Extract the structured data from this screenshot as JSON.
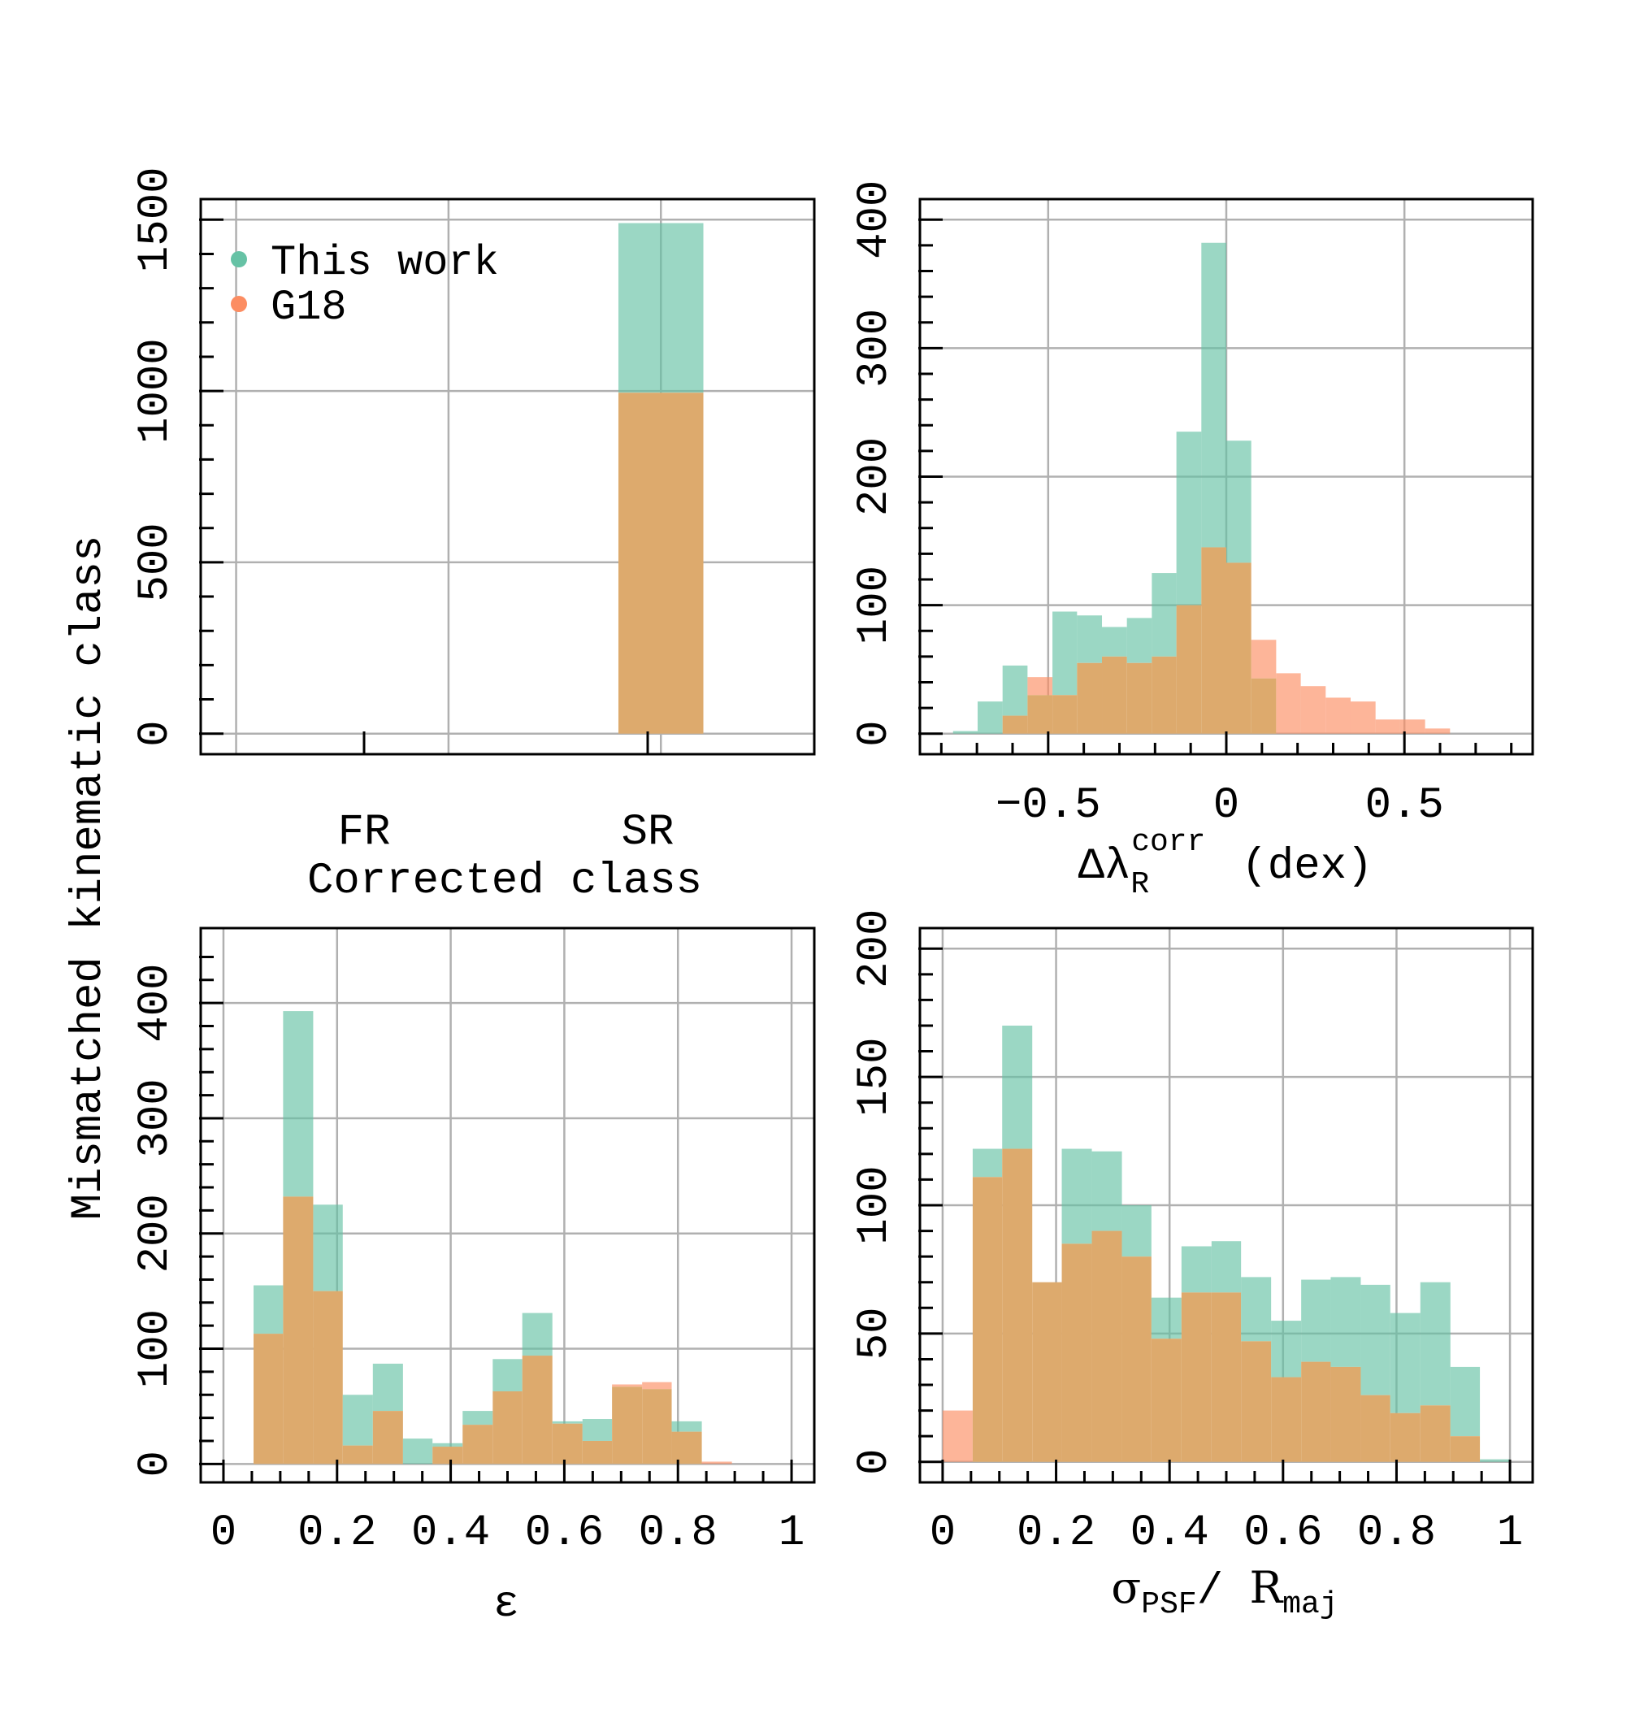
{
  "figure": {
    "shared_ylabel": "Mismatched kinematic class",
    "legend": [
      {
        "label": "This work",
        "color": "#66c2a5"
      },
      {
        "label": "G18",
        "color": "#fc8d62"
      }
    ]
  },
  "colors": {
    "this_work": "#66c2a5",
    "g18": "#fc8d62",
    "overlap": "#ddaa6d"
  },
  "chart_data": [
    {
      "id": "class",
      "type": "bar",
      "xlabel": "Corrected class",
      "categories": [
        "FR",
        "SR"
      ],
      "xlim": [
        -1.05,
        1.55
      ],
      "ylim": [
        -60,
        1560
      ],
      "yticks": [
        0,
        500,
        1000,
        1500
      ],
      "yticks_labels": [
        "0",
        "500",
        "1000",
        "1500"
      ],
      "ygrid": [
        0,
        500,
        1000,
        1500
      ],
      "xgrid": [
        -0.9,
        0.0,
        0.9
      ],
      "yminor": [
        100,
        200,
        300,
        400,
        600,
        700,
        800,
        900,
        1100,
        1200,
        1300,
        1400
      ],
      "bar_width": 0.8,
      "legend_position": "top-left",
      "series": [
        {
          "name": "This work",
          "values": [
            0,
            1490
          ]
        },
        {
          "name": "G18",
          "values": [
            0,
            995
          ]
        }
      ]
    },
    {
      "id": "dlambda",
      "type": "histogram",
      "xlabel_main": "Δλ",
      "xlabel_sub": "R",
      "xlabel_sup": "corr",
      "xlabel_unit": "(dex)",
      "xlim": [
        -0.86,
        0.86
      ],
      "ylim": [
        -16,
        416
      ],
      "xticks": [
        -0.5,
        0,
        0.5
      ],
      "xticks_labels": [
        "−0.5",
        "0",
        "0.5"
      ],
      "yticks": [
        0,
        100,
        200,
        300,
        400
      ],
      "yticks_labels": [
        "0",
        "100",
        "200",
        "300",
        "400"
      ],
      "xgrid": [
        -0.5,
        0,
        0.5
      ],
      "ygrid": [
        0,
        100,
        200,
        300,
        400
      ],
      "xminor": [
        -0.8,
        -0.7,
        -0.6,
        -0.4,
        -0.3,
        -0.2,
        -0.1,
        0.1,
        0.2,
        0.3,
        0.4,
        0.6,
        0.7,
        0.8
      ],
      "yminor": [
        20,
        40,
        60,
        80,
        120,
        140,
        160,
        180,
        220,
        240,
        260,
        280,
        320,
        340,
        360,
        380
      ],
      "bins": [
        -0.767,
        -0.698,
        -0.628,
        -0.558,
        -0.488,
        -0.419,
        -0.349,
        -0.279,
        -0.209,
        -0.14,
        -0.07,
        0.0,
        0.07,
        0.14,
        0.209,
        0.279,
        0.349,
        0.419,
        0.488,
        0.558,
        0.628,
        0.698
      ],
      "series": [
        {
          "name": "This work",
          "values": [
            2,
            25,
            53,
            30,
            95,
            92,
            83,
            90,
            125,
            235,
            382,
            228,
            43,
            0,
            0,
            0,
            0,
            0,
            0,
            0,
            0
          ]
        },
        {
          "name": "G18",
          "values": [
            0,
            0,
            14,
            44,
            30,
            55,
            60,
            55,
            60,
            100,
            145,
            133,
            73,
            47,
            37,
            28,
            25,
            11,
            11,
            4,
            0
          ]
        }
      ]
    },
    {
      "id": "eps",
      "type": "histogram",
      "xlabel": "ε",
      "xlim": [
        -0.04,
        1.04
      ],
      "ylim": [
        -16,
        465
      ],
      "xticks": [
        0,
        0.2,
        0.4,
        0.6,
        0.8,
        1
      ],
      "xticks_labels": [
        "0",
        "0.2",
        "0.4",
        "0.6",
        "0.8",
        "1"
      ],
      "yticks": [
        0,
        100,
        200,
        300,
        400
      ],
      "yticks_labels": [
        "0",
        "100",
        "200",
        "300",
        "400"
      ],
      "xgrid": [
        0,
        0.2,
        0.4,
        0.6,
        0.8,
        1
      ],
      "ygrid": [
        0,
        100,
        200,
        300,
        400
      ],
      "xminor": [
        0.05,
        0.1,
        0.15,
        0.25,
        0.3,
        0.35,
        0.45,
        0.5,
        0.55,
        0.65,
        0.7,
        0.75,
        0.85,
        0.9,
        0.95
      ],
      "yminor": [
        20,
        40,
        60,
        80,
        120,
        140,
        160,
        180,
        220,
        240,
        260,
        280,
        320,
        340,
        360,
        380,
        420,
        440
      ],
      "bins": [
        0.053,
        0.105,
        0.158,
        0.21,
        0.263,
        0.316,
        0.368,
        0.421,
        0.474,
        0.526,
        0.579,
        0.632,
        0.684,
        0.737,
        0.789,
        0.842,
        0.895
      ],
      "series": [
        {
          "name": "This work",
          "values": [
            155,
            393,
            225,
            60,
            87,
            22,
            18,
            46,
            91,
            131,
            37,
            39,
            67,
            65,
            37,
            0
          ]
        },
        {
          "name": "G18",
          "values": [
            113,
            232,
            150,
            16,
            46,
            0,
            15,
            34,
            63,
            94,
            35,
            20,
            69,
            71,
            28,
            2
          ]
        }
      ]
    },
    {
      "id": "psf",
      "type": "histogram",
      "xlabel_main": "σ",
      "xlabel_main_sub": "PSF",
      "xlabel_sep": "/ ",
      "xlabel_second": "R",
      "xlabel_second_sub": "maj",
      "xlim": [
        -0.04,
        1.04
      ],
      "ylim": [
        -8,
        208
      ],
      "xticks": [
        0,
        0.2,
        0.4,
        0.6,
        0.8,
        1
      ],
      "xticks_labels": [
        "0",
        "0.2",
        "0.4",
        "0.6",
        "0.8",
        "1"
      ],
      "yticks": [
        0,
        50,
        100,
        150,
        200
      ],
      "yticks_labels": [
        "0",
        "50",
        "100",
        "150",
        "200"
      ],
      "xgrid": [
        0,
        0.2,
        0.4,
        0.6,
        0.8,
        1
      ],
      "ygrid": [
        0,
        50,
        100,
        150,
        200
      ],
      "xminor": [
        0.05,
        0.1,
        0.15,
        0.25,
        0.3,
        0.35,
        0.45,
        0.5,
        0.55,
        0.65,
        0.7,
        0.75,
        0.85,
        0.9,
        0.95
      ],
      "yminor": [
        10,
        20,
        30,
        40,
        60,
        70,
        80,
        90,
        110,
        120,
        130,
        140,
        160,
        170,
        180,
        190
      ],
      "bins": [
        0.0,
        0.053,
        0.105,
        0.158,
        0.21,
        0.263,
        0.316,
        0.368,
        0.421,
        0.474,
        0.526,
        0.579,
        0.632,
        0.684,
        0.737,
        0.789,
        0.842,
        0.895,
        0.947,
        1.0
      ],
      "series": [
        {
          "name": "This work",
          "values": [
            0,
            122,
            170,
            70,
            122,
            121,
            100,
            64,
            84,
            86,
            72,
            55,
            71,
            72,
            69,
            58,
            70,
            37,
            1
          ]
        },
        {
          "name": "G18",
          "values": [
            20,
            111,
            122,
            70,
            85,
            90,
            80,
            48,
            66,
            66,
            47,
            33,
            39,
            37,
            26,
            19,
            22,
            10,
            0
          ]
        }
      ]
    }
  ]
}
